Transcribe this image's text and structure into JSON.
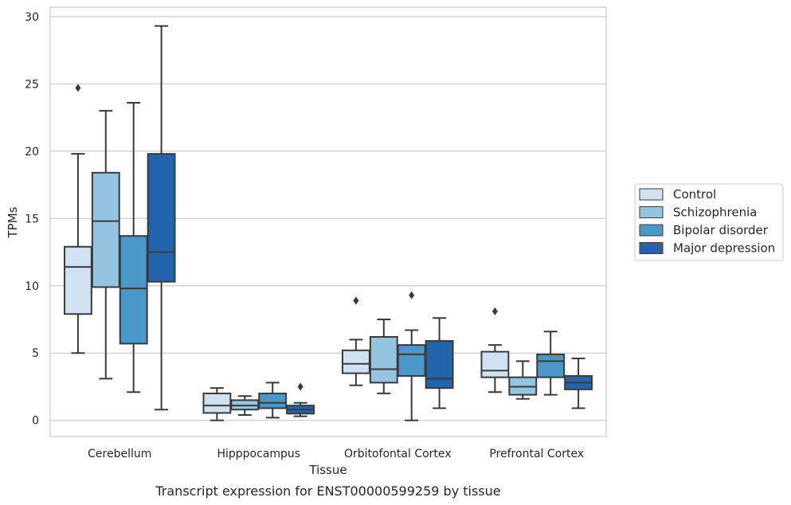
{
  "chart_data": {
    "type": "box",
    "title": "",
    "caption": "Transcript expression for ENST00000599259 by tissue",
    "xlabel": "Tissue",
    "ylabel": "TPMs",
    "ylim": [
      -1.2,
      30.7
    ],
    "yticks": [
      0,
      5,
      10,
      15,
      20,
      25,
      30
    ],
    "grid": "horizontal",
    "legend_position": "right",
    "categories": [
      "Cerebellum",
      "Hipppocampus",
      "Orbitofontal Cortex",
      "Prefrontal Cortex"
    ],
    "series": [
      {
        "name": "Control",
        "color": "#d0e1f2",
        "boxes": [
          {
            "whisker_low": 5.0,
            "q1": 7.9,
            "median": 11.4,
            "q3": 12.9,
            "whisker_high": 19.8,
            "outliers": [
              24.7
            ]
          },
          {
            "whisker_low": 0.0,
            "q1": 0.55,
            "median": 1.1,
            "q3": 2.0,
            "whisker_high": 2.4,
            "outliers": []
          },
          {
            "whisker_low": 2.6,
            "q1": 3.5,
            "median": 4.2,
            "q3": 5.2,
            "whisker_high": 6.0,
            "outliers": [
              8.9
            ]
          },
          {
            "whisker_low": 2.1,
            "q1": 3.2,
            "median": 3.7,
            "q3": 5.1,
            "whisker_high": 5.6,
            "outliers": [
              8.1
            ]
          }
        ]
      },
      {
        "name": "Schizophrenia",
        "color": "#94c4df",
        "boxes": [
          {
            "whisker_low": 3.1,
            "q1": 9.9,
            "median": 14.8,
            "q3": 18.4,
            "whisker_high": 23.0,
            "outliers": []
          },
          {
            "whisker_low": 0.4,
            "q1": 0.8,
            "median": 1.1,
            "q3": 1.5,
            "whisker_high": 1.8,
            "outliers": []
          },
          {
            "whisker_low": 2.0,
            "q1": 2.8,
            "median": 3.8,
            "q3": 6.2,
            "whisker_high": 7.5,
            "outliers": []
          },
          {
            "whisker_low": 1.6,
            "q1": 1.9,
            "median": 2.5,
            "q3": 3.2,
            "whisker_high": 4.4,
            "outliers": []
          }
        ]
      },
      {
        "name": "Bipolar disorder",
        "color": "#4a98c9",
        "boxes": [
          {
            "whisker_low": 2.1,
            "q1": 5.7,
            "median": 9.8,
            "q3": 13.7,
            "whisker_high": 23.6,
            "outliers": []
          },
          {
            "whisker_low": 0.2,
            "q1": 0.9,
            "median": 1.3,
            "q3": 2.0,
            "whisker_high": 2.8,
            "outliers": []
          },
          {
            "whisker_low": 0.0,
            "q1": 3.3,
            "median": 4.9,
            "q3": 5.6,
            "whisker_high": 6.7,
            "outliers": [
              9.3
            ]
          },
          {
            "whisker_low": 1.9,
            "q1": 3.2,
            "median": 4.4,
            "q3": 4.9,
            "whisker_high": 6.6,
            "outliers": []
          }
        ]
      },
      {
        "name": "Major depression",
        "color": "#2164ab",
        "boxes": [
          {
            "whisker_low": 0.8,
            "q1": 10.3,
            "median": 12.5,
            "q3": 19.8,
            "whisker_high": 29.3,
            "outliers": []
          },
          {
            "whisker_low": 0.3,
            "q1": 0.5,
            "median": 0.8,
            "q3": 1.1,
            "whisker_high": 1.3,
            "outliers": [
              2.5
            ]
          },
          {
            "whisker_low": 0.9,
            "q1": 2.4,
            "median": 3.1,
            "q3": 5.9,
            "whisker_high": 7.6,
            "outliers": []
          },
          {
            "whisker_low": 0.9,
            "q1": 2.3,
            "median": 2.8,
            "q3": 3.3,
            "whisker_high": 4.6,
            "outliers": []
          }
        ]
      }
    ]
  }
}
